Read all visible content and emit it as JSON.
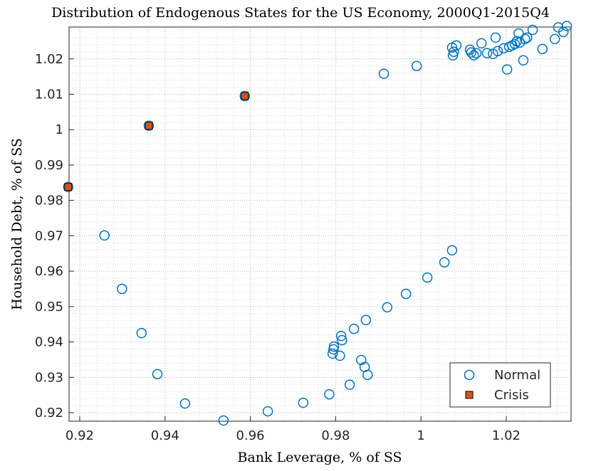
{
  "chart_data": {
    "type": "scatter",
    "title": "Distribution of Endogenous States for the US Economy, 2000Q1-2015Q4",
    "xlabel": "Bank Leverage, % of SS",
    "ylabel": "Household Debt, % of SS",
    "xlim": [
      0.9175,
      1.0352
    ],
    "ylim": [
      0.9176,
      1.029
    ],
    "xticks": [
      0.92,
      0.94,
      0.96,
      0.98,
      1,
      1.02
    ],
    "yticks": [
      0.92,
      0.93,
      0.94,
      0.95,
      0.96,
      0.97,
      0.98,
      0.99,
      1,
      1.01,
      1.02
    ],
    "grid": true,
    "minor_grid": true,
    "legend": "lower right",
    "series": [
      {
        "name": "Normal",
        "color": "#0072bd",
        "marker": "circle",
        "x": [
          0.9173,
          0.9362,
          0.9587,
          0.9258,
          0.9299,
          0.9345,
          0.9382,
          0.9447,
          0.9537,
          0.9641,
          0.9724,
          0.9785,
          0.9833,
          0.9793,
          0.9795,
          0.9796,
          0.981,
          0.9813,
          0.9815,
          0.9843,
          0.9871,
          0.986,
          0.9868,
          0.9875,
          0.9921,
          0.9965,
          1.0015,
          1.0055,
          1.0073,
          0.9913,
          0.999,
          1.0073,
          1.0077,
          1.0075,
          1.0083,
          1.0115,
          1.0118,
          1.0124,
          1.013,
          1.0142,
          1.0155,
          1.0169,
          1.0175,
          1.018,
          1.0194,
          1.0202,
          1.0207,
          1.0214,
          1.022,
          1.0225,
          1.0229,
          1.0232,
          1.024,
          1.0244,
          1.0249,
          1.0262,
          1.0285,
          1.0314,
          1.0322,
          1.0334,
          1.0342
        ],
        "y": [
          0.9838,
          1.0011,
          1.0095,
          0.9701,
          0.955,
          0.9425,
          0.9309,
          0.9226,
          0.9178,
          0.9204,
          0.9228,
          0.9252,
          0.9279,
          0.9367,
          0.9379,
          0.9387,
          0.9361,
          0.9417,
          0.9405,
          0.9437,
          0.9462,
          0.9349,
          0.9329,
          0.9307,
          0.9498,
          0.9536,
          0.9582,
          0.9625,
          0.9659,
          1.0158,
          1.018,
          1.0232,
          1.022,
          1.021,
          1.0238,
          1.0226,
          1.0218,
          1.021,
          1.0216,
          1.0244,
          1.0216,
          1.0214,
          1.026,
          1.0222,
          1.023,
          1.017,
          1.0234,
          1.0238,
          1.0242,
          1.025,
          1.0272,
          1.0246,
          1.0196,
          1.0256,
          1.026,
          1.0282,
          1.0228,
          1.0256,
          1.0289,
          1.0276,
          1.0293
        ]
      },
      {
        "name": "Crisis",
        "color": "#d95319",
        "marker": "square",
        "x": [
          0.9173,
          0.9362,
          0.9587
        ],
        "y": [
          0.9838,
          1.0011,
          1.0095
        ]
      }
    ]
  }
}
